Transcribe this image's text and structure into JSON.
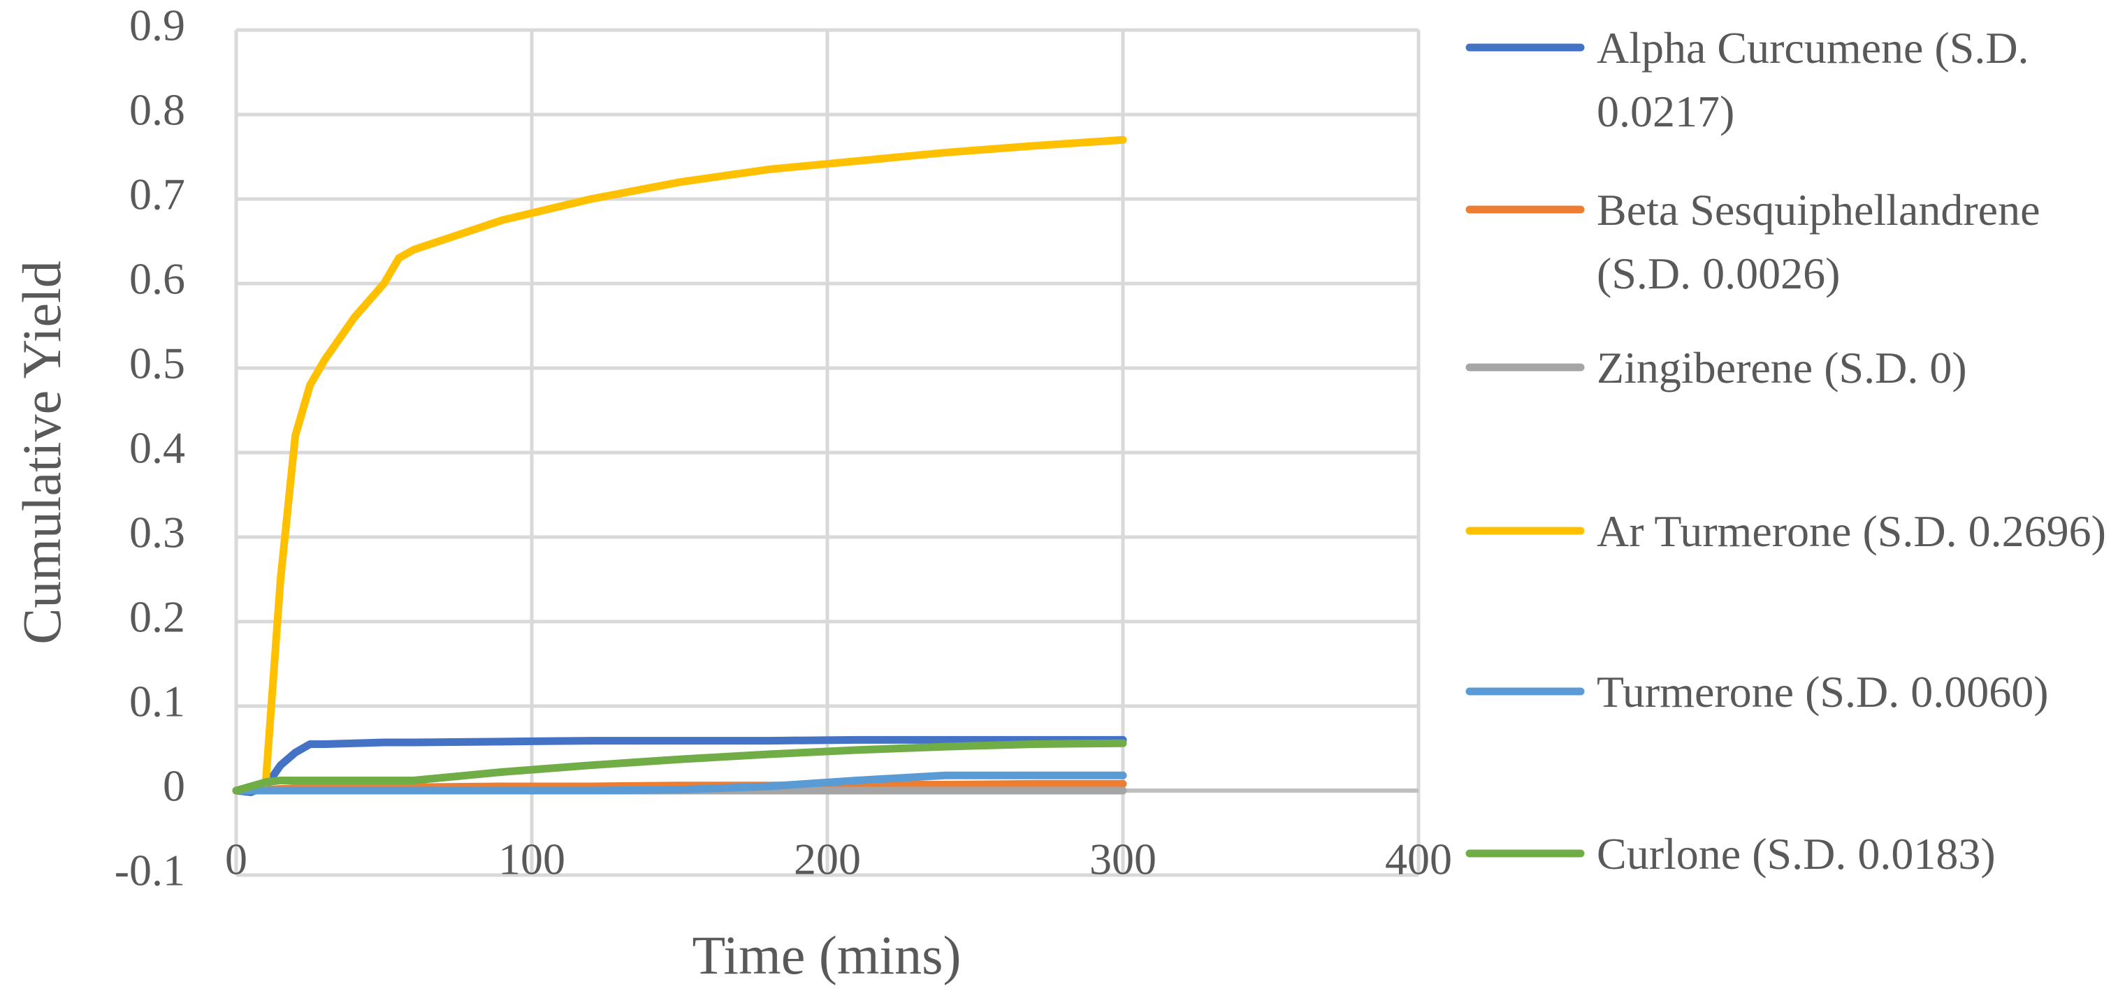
{
  "chart_data": {
    "type": "line",
    "x_label": "Time (mins)",
    "y_label": "Cumulative  Yield",
    "x": [
      0,
      5,
      10,
      15,
      20,
      25,
      30,
      40,
      50,
      55,
      60,
      90,
      120,
      150,
      180,
      210,
      240,
      270,
      300
    ],
    "xlim": [
      0,
      400
    ],
    "xticks": [
      0,
      100,
      200,
      300,
      400
    ],
    "ylim": [
      -0.1,
      0.9
    ],
    "yticks": [
      -0.1,
      0,
      0.1,
      0.2,
      0.3,
      0.4,
      0.5,
      0.6,
      0.7,
      0.8,
      0.9
    ],
    "grid": true,
    "legend": "right",
    "series": [
      {
        "name": "Alpha Curcumene (S.D. 0.0217)",
        "color": "#4472c4",
        "values": [
          0,
          -0.002,
          0.005,
          0.03,
          0.045,
          0.055,
          0.055,
          0.056,
          0.057,
          0.057,
          0.057,
          0.058,
          0.059,
          0.059,
          0.059,
          0.06,
          0.06,
          0.06,
          0.06
        ]
      },
      {
        "name": "Beta Sesquiphellandrene (S.D. 0.0026)",
        "color": "#ed7d31",
        "values": [
          0,
          0,
          0.001,
          0.002,
          0.003,
          0.003,
          0.003,
          0.004,
          0.004,
          0.004,
          0.004,
          0.005,
          0.005,
          0.006,
          0.006,
          0.007,
          0.007,
          0.008,
          0.008
        ]
      },
      {
        "name": "Zingiberene (S.D. 0)",
        "color": "#a5a5a5",
        "values": [
          0,
          0,
          0,
          0,
          0,
          0,
          0,
          0,
          0,
          0,
          0,
          0,
          0,
          0,
          0,
          0,
          0,
          0,
          0
        ]
      },
      {
        "name": "Ar Turmerone (S.D. 0.2696)",
        "color": "#ffc000",
        "values": [
          0,
          0,
          0.01,
          0.25,
          0.42,
          0.48,
          0.51,
          0.56,
          0.6,
          0.63,
          0.64,
          0.675,
          0.7,
          0.72,
          0.735,
          0.745,
          0.755,
          0.763,
          0.77
        ]
      },
      {
        "name": "Turmerone (S.D. 0.0060)",
        "color": "#5b9bd5",
        "values": [
          0,
          0,
          0,
          0,
          0,
          0,
          0,
          0,
          0,
          0,
          0,
          0,
          0,
          0.001,
          0.005,
          0.012,
          0.018,
          0.018,
          0.018
        ]
      },
      {
        "name": "Curlone (S.D. 0.0183)",
        "color": "#70ad47",
        "values": [
          0,
          0.005,
          0.01,
          0.012,
          0.012,
          0.012,
          0.012,
          0.012,
          0.012,
          0.012,
          0.012,
          0.022,
          0.03,
          0.037,
          0.043,
          0.048,
          0.052,
          0.055,
          0.056
        ]
      }
    ]
  }
}
